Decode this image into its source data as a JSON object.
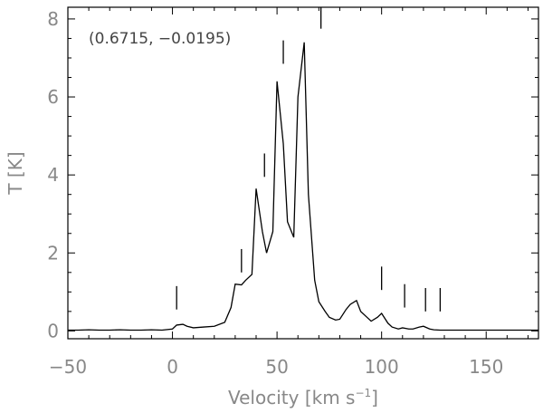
{
  "chart_data": {
    "type": "line",
    "title": "",
    "annotation": "(0.6715, −0.0195)",
    "xlabel": {
      "main": "Velocity [km s",
      "sup": "−1",
      "close": "]"
    },
    "ylabel": "T [K]",
    "xlim": [
      -50,
      175
    ],
    "ylim": [
      -0.2,
      8.3
    ],
    "xticks": [
      -50,
      0,
      50,
      100,
      150
    ],
    "xtick_labels": [
      "−50",
      "0",
      "50",
      "100",
      "150"
    ],
    "yticks": [
      0,
      2,
      4,
      6,
      8
    ],
    "ytick_labels": [
      "0",
      "2",
      "4",
      "6",
      "8"
    ],
    "grid": false,
    "line_color": "#000000",
    "axis_color": "#000000",
    "text_color": "#888888",
    "x": [
      -50,
      -45,
      -40,
      -35,
      -30,
      -25,
      -20,
      -15,
      -10,
      -5,
      0,
      2,
      5,
      7,
      10,
      15,
      20,
      25,
      28,
      30,
      33,
      35,
      38,
      40,
      43,
      45,
      48,
      50,
      53,
      55,
      58,
      60,
      63,
      65,
      68,
      70,
      73,
      75,
      78,
      80,
      83,
      85,
      88,
      90,
      93,
      95,
      98,
      100,
      103,
      105,
      108,
      110,
      113,
      115,
      118,
      120,
      123,
      125,
      128,
      130,
      135,
      140,
      150,
      160,
      175
    ],
    "y": [
      0.02,
      0.02,
      0.03,
      0.02,
      0.02,
      0.03,
      0.02,
      0.02,
      0.03,
      0.02,
      0.05,
      0.15,
      0.17,
      0.12,
      0.08,
      0.1,
      0.12,
      0.22,
      0.6,
      1.2,
      1.18,
      1.3,
      1.45,
      3.65,
      2.55,
      2.0,
      2.55,
      6.4,
      4.8,
      2.8,
      2.4,
      6.0,
      7.4,
      3.5,
      1.3,
      0.75,
      0.5,
      0.35,
      0.28,
      0.3,
      0.55,
      0.68,
      0.78,
      0.5,
      0.35,
      0.25,
      0.35,
      0.45,
      0.2,
      0.1,
      0.05,
      0.08,
      0.05,
      0.05,
      0.1,
      0.12,
      0.05,
      0.03,
      0.02,
      0.02,
      0.02,
      0.02,
      0.02,
      0.02,
      0.02
    ],
    "markers": [
      {
        "x": 2,
        "y_low": 0.55,
        "y_high": 1.15
      },
      {
        "x": 33,
        "y_low": 1.5,
        "y_high": 2.1
      },
      {
        "x": 44,
        "y_low": 3.95,
        "y_high": 4.55
      },
      {
        "x": 53,
        "y_low": 6.85,
        "y_high": 7.45
      },
      {
        "x": 71,
        "y_low": 7.75,
        "y_high": 8.3
      },
      {
        "x": 100,
        "y_low": 1.05,
        "y_high": 1.65
      },
      {
        "x": 111,
        "y_low": 0.6,
        "y_high": 1.2
      },
      {
        "x": 121,
        "y_low": 0.5,
        "y_high": 1.1
      },
      {
        "x": 128,
        "y_low": 0.5,
        "y_high": 1.1
      }
    ]
  }
}
